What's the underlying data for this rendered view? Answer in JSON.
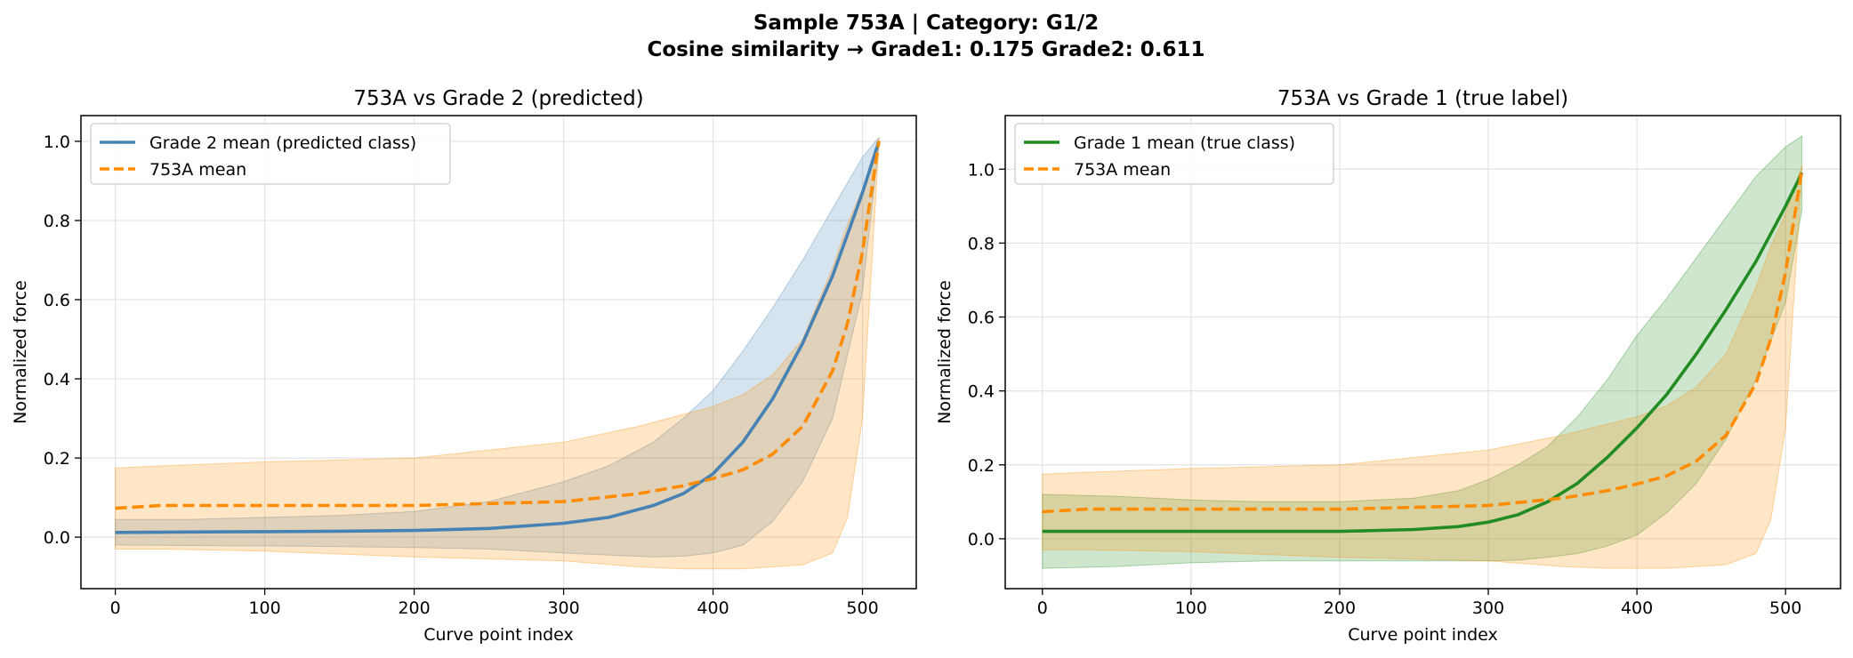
{
  "figure": {
    "title_line1": "Sample 753A  |  Category: G1/2",
    "title_line2": "Cosine similarity → Grade1: 0.175   Grade2: 0.611"
  },
  "colors": {
    "grade2": "#4682b4",
    "grade1": "#228b22",
    "sample": "#ff8c00",
    "sample_band": "#ffdcaa",
    "grade2_band": "#b4cce4",
    "grade1_band": "#a8d8a8"
  },
  "chart_data": [
    {
      "type": "line",
      "title": "753A vs Grade 2 (predicted)",
      "xlabel": "Curve point index",
      "ylabel": "Normalized force",
      "xlim": [
        -23,
        536
      ],
      "ylim": [
        -0.13,
        1.065
      ],
      "xticks": [
        0,
        100,
        200,
        300,
        400,
        500
      ],
      "yticks": [
        0.0,
        0.2,
        0.4,
        0.6,
        0.8,
        1.0
      ],
      "ytick_labels": [
        "0.0",
        "0.2",
        "0.4",
        "0.6",
        "0.8",
        "1.0"
      ],
      "grid": true,
      "legend_position": "upper-left",
      "series": [
        {
          "name": "Grade 2 mean (predicted class)",
          "style": "solid",
          "color": "#4682b4",
          "x": [
            0,
            50,
            100,
            150,
            200,
            250,
            300,
            330,
            360,
            380,
            400,
            420,
            440,
            460,
            480,
            500,
            511
          ],
          "y": [
            0.012,
            0.013,
            0.014,
            0.015,
            0.017,
            0.022,
            0.035,
            0.05,
            0.08,
            0.11,
            0.16,
            0.24,
            0.35,
            0.49,
            0.66,
            0.87,
            1.0
          ],
          "lower": [
            -0.02,
            -0.021,
            -0.022,
            -0.024,
            -0.026,
            -0.03,
            -0.04,
            -0.045,
            -0.05,
            -0.048,
            -0.04,
            -0.02,
            0.04,
            0.14,
            0.3,
            0.62,
            0.99
          ],
          "upper": [
            0.045,
            0.045,
            0.05,
            0.055,
            0.065,
            0.09,
            0.14,
            0.18,
            0.24,
            0.3,
            0.37,
            0.47,
            0.58,
            0.7,
            0.83,
            0.96,
            1.01
          ]
        },
        {
          "name": "753A mean",
          "style": "dashed",
          "color": "#ff8c00",
          "x": [
            0,
            30,
            100,
            200,
            300,
            350,
            380,
            400,
            420,
            440,
            460,
            480,
            490,
            500,
            511
          ],
          "y": [
            0.073,
            0.08,
            0.08,
            0.08,
            0.09,
            0.11,
            0.13,
            0.148,
            0.17,
            0.21,
            0.28,
            0.42,
            0.54,
            0.72,
            1.0
          ],
          "lower": [
            -0.03,
            -0.03,
            -0.035,
            -0.05,
            -0.06,
            -0.075,
            -0.08,
            -0.08,
            -0.08,
            -0.075,
            -0.07,
            -0.04,
            0.05,
            0.3,
            0.99
          ],
          "upper": [
            0.175,
            0.18,
            0.19,
            0.2,
            0.24,
            0.28,
            0.31,
            0.33,
            0.36,
            0.41,
            0.5,
            0.68,
            0.79,
            0.88,
            1.01
          ]
        }
      ]
    },
    {
      "type": "line",
      "title": "753A vs Grade 1 (true label)",
      "xlabel": "Curve point index",
      "ylabel": "Normalized force",
      "xlim": [
        -25,
        537
      ],
      "ylim": [
        -0.135,
        1.145
      ],
      "xticks": [
        0,
        100,
        200,
        300,
        400,
        500
      ],
      "yticks": [
        0.0,
        0.2,
        0.4,
        0.6,
        0.8,
        1.0
      ],
      "ytick_labels": [
        "0.0",
        "0.2",
        "0.4",
        "0.6",
        "0.8",
        "1.0"
      ],
      "grid": true,
      "legend_position": "upper-left",
      "series": [
        {
          "name": "Grade 1 mean (true class)",
          "style": "solid",
          "color": "#228b22",
          "x": [
            0,
            50,
            100,
            150,
            200,
            250,
            280,
            300,
            320,
            340,
            360,
            380,
            400,
            420,
            440,
            460,
            480,
            500,
            511
          ],
          "y": [
            0.02,
            0.02,
            0.02,
            0.02,
            0.02,
            0.025,
            0.033,
            0.045,
            0.065,
            0.1,
            0.15,
            0.22,
            0.3,
            0.39,
            0.5,
            0.62,
            0.75,
            0.9,
            0.99
          ],
          "lower": [
            -0.08,
            -0.075,
            -0.065,
            -0.06,
            -0.06,
            -0.06,
            -0.06,
            -0.06,
            -0.058,
            -0.05,
            -0.04,
            -0.02,
            0.01,
            0.07,
            0.15,
            0.27,
            0.43,
            0.64,
            0.89
          ],
          "upper": [
            0.12,
            0.115,
            0.105,
            0.1,
            0.1,
            0.11,
            0.13,
            0.16,
            0.2,
            0.25,
            0.33,
            0.43,
            0.55,
            0.65,
            0.76,
            0.87,
            0.98,
            1.06,
            1.09
          ]
        },
        {
          "name": "753A mean",
          "style": "dashed",
          "color": "#ff8c00",
          "x": [
            0,
            30,
            100,
            200,
            300,
            350,
            380,
            400,
            420,
            440,
            460,
            480,
            490,
            500,
            511
          ],
          "y": [
            0.073,
            0.08,
            0.08,
            0.08,
            0.09,
            0.11,
            0.13,
            0.148,
            0.17,
            0.21,
            0.28,
            0.42,
            0.54,
            0.72,
            1.0
          ],
          "lower": [
            -0.03,
            -0.03,
            -0.035,
            -0.05,
            -0.06,
            -0.075,
            -0.08,
            -0.08,
            -0.08,
            -0.075,
            -0.07,
            -0.04,
            0.05,
            0.3,
            0.99
          ],
          "upper": [
            0.175,
            0.18,
            0.19,
            0.2,
            0.24,
            0.28,
            0.31,
            0.33,
            0.36,
            0.41,
            0.5,
            0.68,
            0.79,
            0.88,
            1.01
          ]
        }
      ]
    }
  ]
}
